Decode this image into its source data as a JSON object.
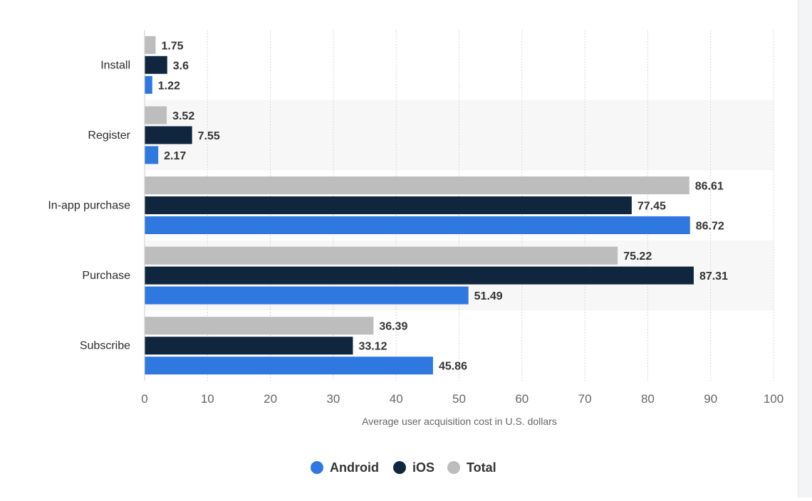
{
  "chart_data": {
    "type": "bar",
    "orientation": "horizontal",
    "categories": [
      "Install",
      "Register",
      "In-app purchase",
      "Purchase",
      "Subscribe"
    ],
    "series": [
      {
        "name": "Total",
        "color": "#bdbdbd",
        "values": [
          1.75,
          3.52,
          86.61,
          75.22,
          36.39
        ]
      },
      {
        "name": "iOS",
        "color": "#10263e",
        "values": [
          3.6,
          7.55,
          77.45,
          87.31,
          33.12
        ]
      },
      {
        "name": "Android",
        "color": "#2f78e0",
        "values": [
          1.22,
          2.17,
          86.72,
          51.49,
          45.86
        ]
      }
    ],
    "value_labels": {
      "Total": [
        "1.75",
        "3.52",
        "86.61",
        "75.22",
        "36.39"
      ],
      "iOS": [
        "3.6",
        "7.55",
        "77.45",
        "87.31",
        "33.12"
      ],
      "Android": [
        "1.22",
        "2.17",
        "86.72",
        "51.49",
        "45.86"
      ]
    },
    "xlabel": "Average user acquisition cost in U.S. dollars",
    "ylabel": "",
    "xlim": [
      0,
      100
    ],
    "xticks": [
      0,
      10,
      20,
      30,
      40,
      50,
      60,
      70,
      80,
      90,
      100
    ],
    "grid": true,
    "legend": {
      "position": "bottom-center",
      "entries": [
        {
          "label": "Android",
          "color": "#2f78e0"
        },
        {
          "label": "iOS",
          "color": "#10263e"
        },
        {
          "label": "Total",
          "color": "#bdbdbd"
        }
      ]
    }
  }
}
